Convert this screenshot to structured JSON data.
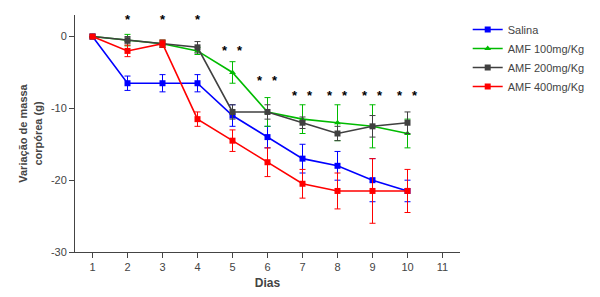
{
  "chart_data": {
    "type": "line",
    "xlabel": "Dias",
    "ylabel": "Variação de massa\ncorpórea (g)",
    "x": [
      1,
      2,
      3,
      4,
      5,
      6,
      7,
      8,
      9,
      10
    ],
    "series": [
      {
        "name": "Salina",
        "color": "#0000ff",
        "marker": "square",
        "values": [
          0,
          -6.5,
          -6.5,
          -6.5,
          -11.0,
          -14.0,
          -17.0,
          -18.0,
          -20.0,
          -21.5
        ],
        "yerr": [
          0,
          1.0,
          1.2,
          1.2,
          1.5,
          1.5,
          2.0,
          2.0,
          3.0,
          1.5
        ]
      },
      {
        "name": "AMF 100mg/Kg",
        "color": "#00bb00",
        "marker": "triangle-up",
        "values": [
          0,
          -0.5,
          -1.0,
          -2.0,
          -5.0,
          -10.5,
          -11.5,
          -12.0,
          -12.5,
          -13.5
        ],
        "yerr": [
          0,
          0.8,
          0.5,
          0.5,
          1.5,
          2.0,
          2.0,
          2.5,
          3.0,
          2.0
        ]
      },
      {
        "name": "AMF 200mg/Kg",
        "color": "#404040",
        "marker": "square",
        "values": [
          0,
          -0.5,
          -1.0,
          -1.5,
          -10.5,
          -10.5,
          -12.0,
          -13.5,
          -12.5,
          -12.0
        ],
        "yerr": [
          0,
          0.5,
          0.5,
          0.8,
          1.0,
          1.0,
          0.8,
          1.0,
          1.5,
          1.5
        ]
      },
      {
        "name": "AMF 400mg/Kg",
        "color": "#ff0000",
        "marker": "square",
        "values": [
          0,
          -2.0,
          -1.0,
          -11.5,
          -14.5,
          -17.5,
          -20.5,
          -21.5,
          -21.5,
          -21.5
        ],
        "yerr": [
          0,
          0.8,
          0.5,
          1.0,
          1.5,
          2.0,
          2.0,
          2.5,
          4.5,
          3.0
        ]
      }
    ],
    "annotations": [
      {
        "x": 2.0,
        "y": 1.0,
        "text": "*"
      },
      {
        "x": 3.0,
        "y": 1.0,
        "text": "*"
      },
      {
        "x": 4.0,
        "y": 1.0,
        "text": "*"
      },
      {
        "x": 4.78,
        "y": -3.2,
        "text": "*"
      },
      {
        "x": 5.22,
        "y": -3.2,
        "text": "*"
      },
      {
        "x": 5.78,
        "y": -7.5,
        "text": "*"
      },
      {
        "x": 6.22,
        "y": -7.5,
        "text": "*"
      },
      {
        "x": 6.78,
        "y": -9.5,
        "text": "*"
      },
      {
        "x": 7.22,
        "y": -9.5,
        "text": "*"
      },
      {
        "x": 7.78,
        "y": -9.5,
        "text": "*"
      },
      {
        "x": 8.22,
        "y": -9.5,
        "text": "*"
      },
      {
        "x": 8.78,
        "y": -9.5,
        "text": "*"
      },
      {
        "x": 9.22,
        "y": -9.5,
        "text": "*"
      },
      {
        "x": 9.78,
        "y": -9.5,
        "text": "*"
      },
      {
        "x": 10.22,
        "y": -9.5,
        "text": "*"
      }
    ],
    "xlim": [
      0.5,
      11.5
    ],
    "ylim": [
      -30,
      3
    ],
    "xticks": [
      1,
      2,
      3,
      4,
      5,
      6,
      7,
      8,
      9,
      10,
      11
    ],
    "yticks": [
      0,
      -10,
      -20,
      -30
    ],
    "grid": false,
    "legend": "right"
  }
}
